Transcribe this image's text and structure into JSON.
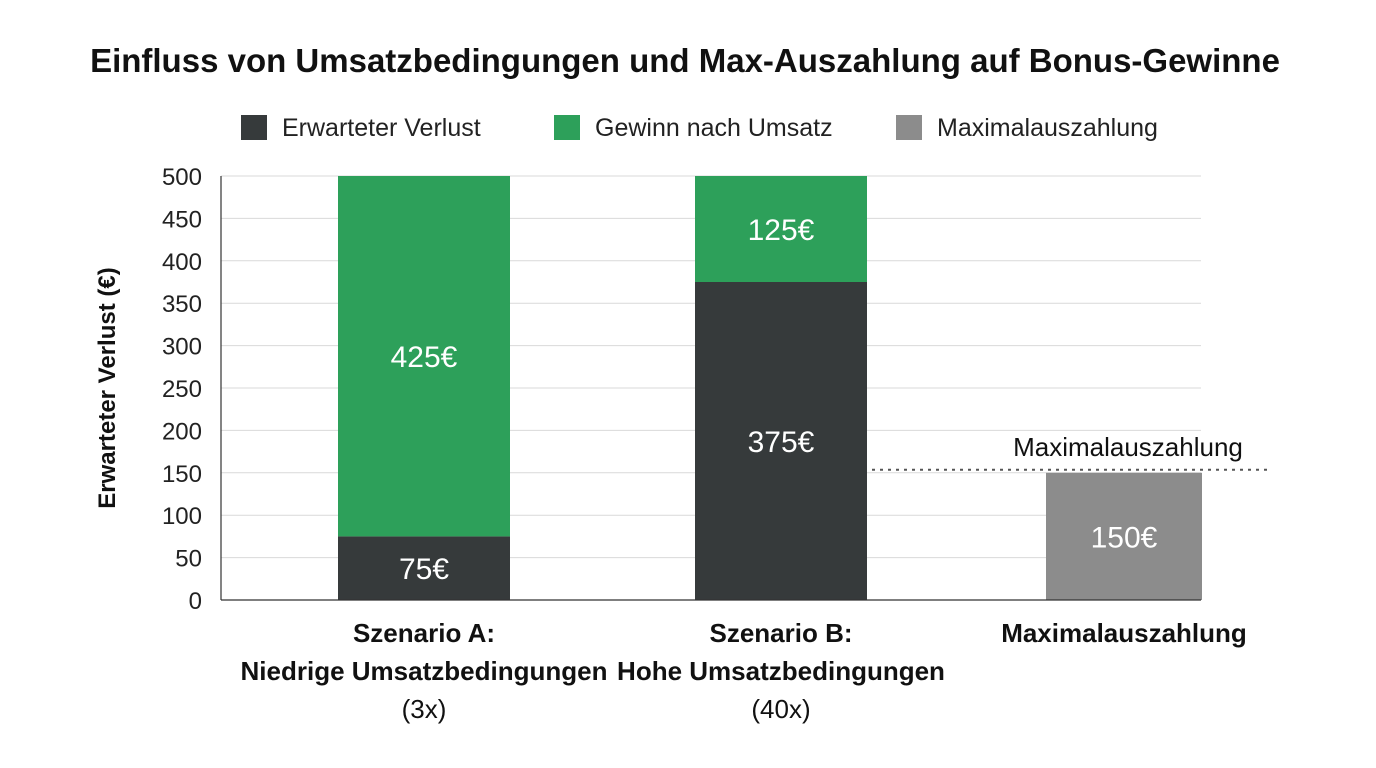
{
  "chart_data": {
    "type": "bar",
    "stacked": true,
    "title": "Einfluss von Umsatzbedingungen und Max-Auszahlung auf Bonus-Gewinne",
    "xlabel": "",
    "ylabel": "Erwarteter Verlust (€)",
    "ylim": [
      0,
      500
    ],
    "yticks": [
      0,
      50,
      100,
      150,
      200,
      250,
      300,
      350,
      400,
      450,
      500
    ],
    "grid": true,
    "legend_position": "top",
    "categories": [
      [
        "Szenario A:",
        "Niedrige Umsatzbedingungen",
        "(3x)"
      ],
      [
        "Szenario B:",
        "Hohe Umsatzbedingungen",
        "(40x)"
      ],
      [
        "Maximalauszahlung"
      ]
    ],
    "series": [
      {
        "name": "Erwarteter Verlust",
        "color": "#363a3b",
        "values": [
          75,
          375,
          null
        ],
        "labels": [
          "75€",
          "375€",
          null
        ]
      },
      {
        "name": "Gewinn nach Umsatz",
        "color": "#2da05a",
        "values": [
          425,
          125,
          null
        ],
        "labels": [
          "425€",
          "125€",
          null
        ]
      },
      {
        "name": "Maximalauszahlung",
        "color": "#8c8c8c",
        "values": [
          null,
          null,
          150
        ],
        "labels": [
          null,
          null,
          "150€"
        ]
      }
    ],
    "reference_line": {
      "value": 150,
      "label": "Maximalauszahlung",
      "style": "dotted"
    }
  }
}
